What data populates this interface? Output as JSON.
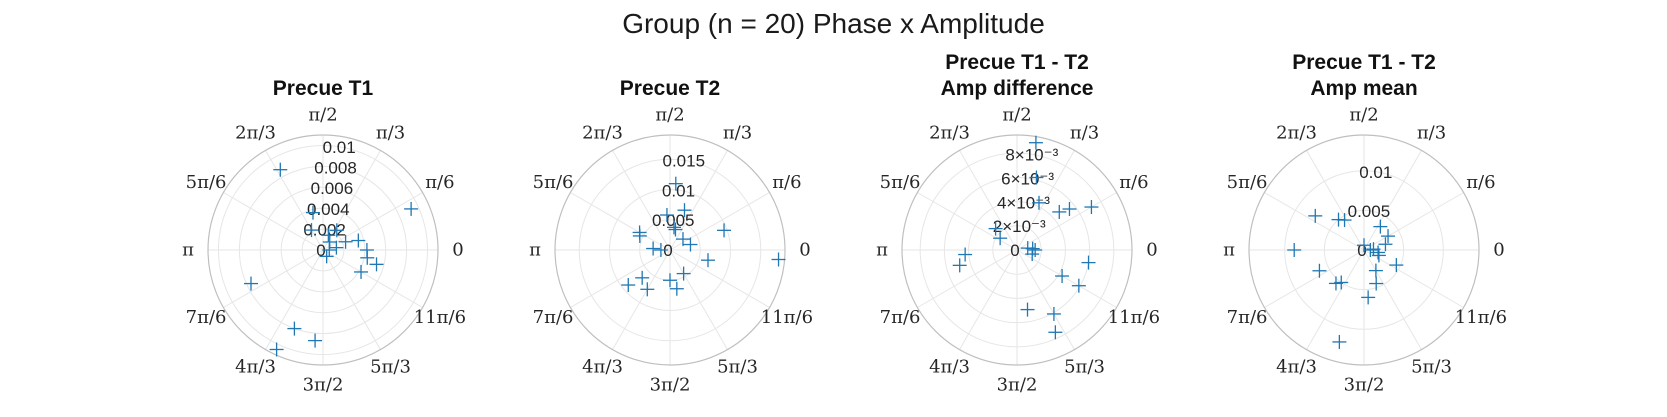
{
  "title": "Group (n = 20) Phase x Amplitude",
  "angle_labels": [
    "0",
    "π/6",
    "π/3",
    "π/2",
    "2π/3",
    "5π/6",
    "π",
    "7π/6",
    "4π/3",
    "3π/2",
    "5π/3",
    "11π/6"
  ],
  "colors": {
    "marker": "#1f77b4",
    "grid": "#e6e6e6",
    "outer_ring": "#bfbfbf"
  },
  "chart_data": [
    {
      "type": "scatter",
      "polar": true,
      "marker": "+",
      "title": [
        "Precue T1"
      ],
      "rlim": [
        0,
        0.011
      ],
      "rticks": [
        0,
        0.002,
        0.004,
        0.006,
        0.008,
        0.01
      ],
      "rtick_labels": [
        "0",
        "0.002",
        "0.004",
        "0.006",
        "0.008",
        "0.01"
      ],
      "theta_deg": [
        55,
        118,
        25,
        15,
        0,
        350,
        330,
        345,
        0,
        70,
        20,
        50,
        300,
        265,
        250,
        245,
        205,
        105,
        120,
        10
      ],
      "r": [
        0.0023,
        0.0087,
        0.0093,
        0.0035,
        0.0042,
        0.0043,
        0.0042,
        0.0053,
        0.0006,
        0.0015,
        0.0023,
        0.001,
        0.0007,
        0.0087,
        0.008,
        0.0105,
        0.0076,
        0.0037,
        0.0022,
        0.0013
      ]
    },
    {
      "type": "scatter",
      "polar": true,
      "marker": "+",
      "title": [
        "Precue T2"
      ],
      "rlim": [
        0,
        0.019
      ],
      "rticks": [
        0,
        0.005,
        0.01,
        0.015
      ],
      "rtick_labels": [
        "0",
        "0.005",
        "0.01",
        "0.015"
      ],
      "theta_deg": [
        355,
        150,
        155,
        95,
        175,
        75,
        80,
        70,
        40,
        20,
        345,
        270,
        280,
        300,
        220,
        225,
        240,
        180,
        85,
        15
      ],
      "r": [
        0.018,
        0.0058,
        0.0055,
        0.0058,
        0.0028,
        0.0035,
        0.0038,
        0.007,
        0.0028,
        0.0095,
        0.0065,
        0.005,
        0.0065,
        0.0045,
        0.009,
        0.0065,
        0.0075,
        0.0015,
        0.011,
        0.0035
      ]
    },
    {
      "type": "scatter",
      "polar": true,
      "marker": "+",
      "title": [
        "Precue T1 - T2",
        "Amp difference"
      ],
      "rlim": [
        0,
        0.0095
      ],
      "rticks": [
        0,
        0.002,
        0.004,
        0.006,
        0.008
      ],
      "rtick_labels": [
        "0",
        "2×10⁻³",
        "4×10⁻³",
        "6×10⁻³",
        "8×10⁻³"
      ],
      "theta_deg": [
        30,
        42,
        38,
        195,
        185,
        145,
        135,
        80,
        75,
        350,
        345,
        330,
        330,
        300,
        280,
        295,
        0,
        5,
        65,
        10
      ],
      "r": [
        0.0071,
        0.0047,
        0.0055,
        0.0049,
        0.0043,
        0.0017,
        0.0025,
        0.009,
        0.0062,
        0.006,
        0.0013,
        0.0043,
        0.0059,
        0.0061,
        0.005,
        0.0075,
        0.0015,
        0.0013,
        0.0043,
        0.0009
      ]
    },
    {
      "type": "scatter",
      "polar": true,
      "marker": "+",
      "title": [
        "Precue T1 - T2",
        "Amp mean"
      ],
      "rlim": [
        0,
        0.0145
      ],
      "rticks": [
        0,
        0.005,
        0.01
      ],
      "rtick_labels": [
        "0",
        "0.005",
        "0.01"
      ],
      "theta_deg": [
        145,
        130,
        123,
        90,
        55,
        30,
        15,
        180,
        205,
        230,
        235,
        255,
        275,
        290,
        300,
        335,
        340,
        350,
        0,
        5
      ],
      "r": [
        0.0075,
        0.005,
        0.0045,
        0.0006,
        0.0036,
        0.0035,
        0.0028,
        0.0088,
        0.0062,
        0.0055,
        0.005,
        0.012,
        0.006,
        0.0045,
        0.003,
        0.0045,
        0.002,
        0.0018,
        0.0008,
        0.0012
      ]
    }
  ]
}
